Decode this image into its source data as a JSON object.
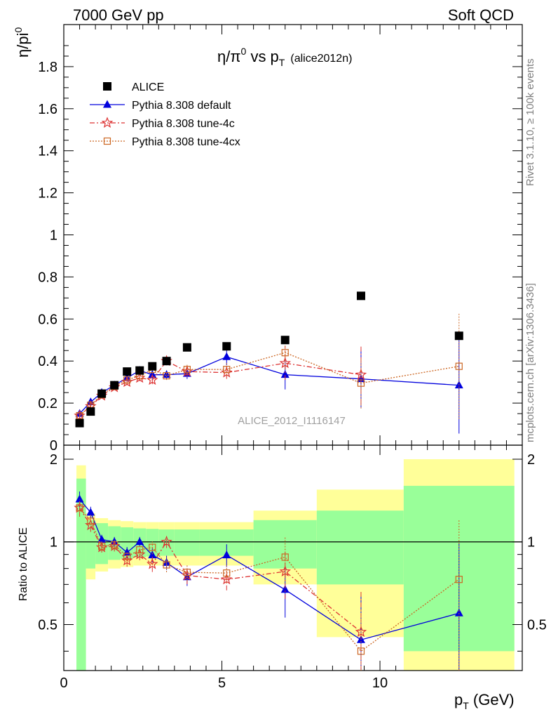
{
  "header": {
    "left": "7000 GeV pp",
    "right": "Soft QCD"
  },
  "sidebar": {
    "rivet": "Rivet 3.1.10, ≥ 100k events",
    "mcplots": "mcplots.cern.ch [arXiv:1306.3436]"
  },
  "chart_data": {
    "type": "scatter",
    "title": "η/π⁰ vs p_T (alice2012n)",
    "title_parts": {
      "main": "η/π",
      "sup": "0",
      "vs": " vs p",
      "sub": "T",
      "tag": "(alice2012n)"
    },
    "watermark": "ALICE_2012_I1116147",
    "xlabel": {
      "main": "p",
      "sub": "T",
      "unit": " (GeV)"
    },
    "ylabel": {
      "main": "η/pi",
      "sup": "0"
    },
    "ratio_ylabel": "Ratio to ALICE",
    "xlim": [
      0,
      14.5
    ],
    "ylim": [
      0,
      2.0
    ],
    "ratio_ylim": [
      0.34,
      2.25
    ],
    "x_ticks": [
      "0",
      "5",
      "10"
    ],
    "y_ticks": [
      "0",
      "0.2",
      "0.4",
      "0.6",
      "0.8",
      "1",
      "1.2",
      "1.4",
      "1.6",
      "1.8"
    ],
    "ratio_ticks": [
      "0.5",
      "1",
      "2"
    ],
    "legend_position": "top-left",
    "x": [
      0.5,
      0.85,
      1.2,
      1.6,
      2.0,
      2.4,
      2.8,
      3.25,
      3.9,
      5.15,
      7.0,
      9.4,
      12.5
    ],
    "bin_edges": [
      0.4,
      0.7,
      1.0,
      1.4,
      1.8,
      2.2,
      2.6,
      3.0,
      3.5,
      4.3,
      6.0,
      8.0,
      10.75,
      14.25
    ],
    "series": [
      {
        "name": "ALICE",
        "color": "#000000",
        "marker": "square",
        "values": [
          0.105,
          0.16,
          0.245,
          0.285,
          0.35,
          0.355,
          0.375,
          0.4,
          0.465,
          0.47,
          0.5,
          0.71,
          0.52
        ],
        "stat_band": [
          0.7,
          0.2,
          0.17,
          0.14,
          0.13,
          0.12,
          0.115,
          0.11,
          0.11,
          0.11,
          0.2,
          0.3,
          0.6
        ],
        "total_band": [
          0.9,
          0.27,
          0.22,
          0.2,
          0.19,
          0.18,
          0.18,
          0.18,
          0.18,
          0.18,
          0.3,
          0.55,
          1.0
        ]
      },
      {
        "name": "Pythia 8.308 default",
        "color": "#0000dd",
        "marker": "triangle",
        "line": "solid",
        "values": [
          0.15,
          0.205,
          0.25,
          0.285,
          0.32,
          0.355,
          0.335,
          0.335,
          0.34,
          0.42,
          0.335,
          0.315,
          0.285
        ],
        "errors": [
          0.01,
          0.01,
          0.01,
          0.012,
          0.015,
          0.015,
          0.02,
          0.02,
          0.025,
          0.04,
          0.07,
          0.14,
          0.23
        ],
        "ratio": [
          1.43,
          1.28,
          1.02,
          1.0,
          0.915,
          1.0,
          0.895,
          0.84,
          0.745,
          0.895,
          0.67,
          0.44,
          0.55
        ]
      },
      {
        "name": "Pythia 8.308 tune-4c",
        "color": "#dd3333",
        "marker": "star",
        "line": "dashdot",
        "values": [
          0.14,
          0.185,
          0.235,
          0.275,
          0.3,
          0.32,
          0.31,
          0.4,
          0.35,
          0.345,
          0.39,
          0.335,
          null
        ],
        "errors": [
          0.01,
          0.01,
          0.01,
          0.012,
          0.015,
          0.015,
          0.02,
          0.02,
          0.025,
          0.03,
          0.08,
          0.14,
          null
        ],
        "ratio": [
          1.33,
          1.15,
          0.955,
          0.965,
          0.855,
          0.9,
          0.83,
          1.0,
          0.755,
          0.73,
          0.78,
          0.47,
          null
        ]
      },
      {
        "name": "Pythia 8.308 tune-4cx",
        "color": "#cc6622",
        "marker": "open-square",
        "line": "dotted",
        "values": [
          0.14,
          0.19,
          0.24,
          0.28,
          0.31,
          0.33,
          0.36,
          0.33,
          0.36,
          0.36,
          0.44,
          0.295,
          0.375
        ],
        "errors": [
          0.01,
          0.01,
          0.01,
          0.012,
          0.015,
          0.015,
          0.02,
          0.02,
          0.025,
          0.03,
          0.08,
          0.12,
          0.25
        ],
        "ratio": [
          1.33,
          1.19,
          0.965,
          0.975,
          0.885,
          0.935,
          0.955,
          0.825,
          0.775,
          0.77,
          0.88,
          0.4,
          0.73
        ]
      }
    ]
  }
}
